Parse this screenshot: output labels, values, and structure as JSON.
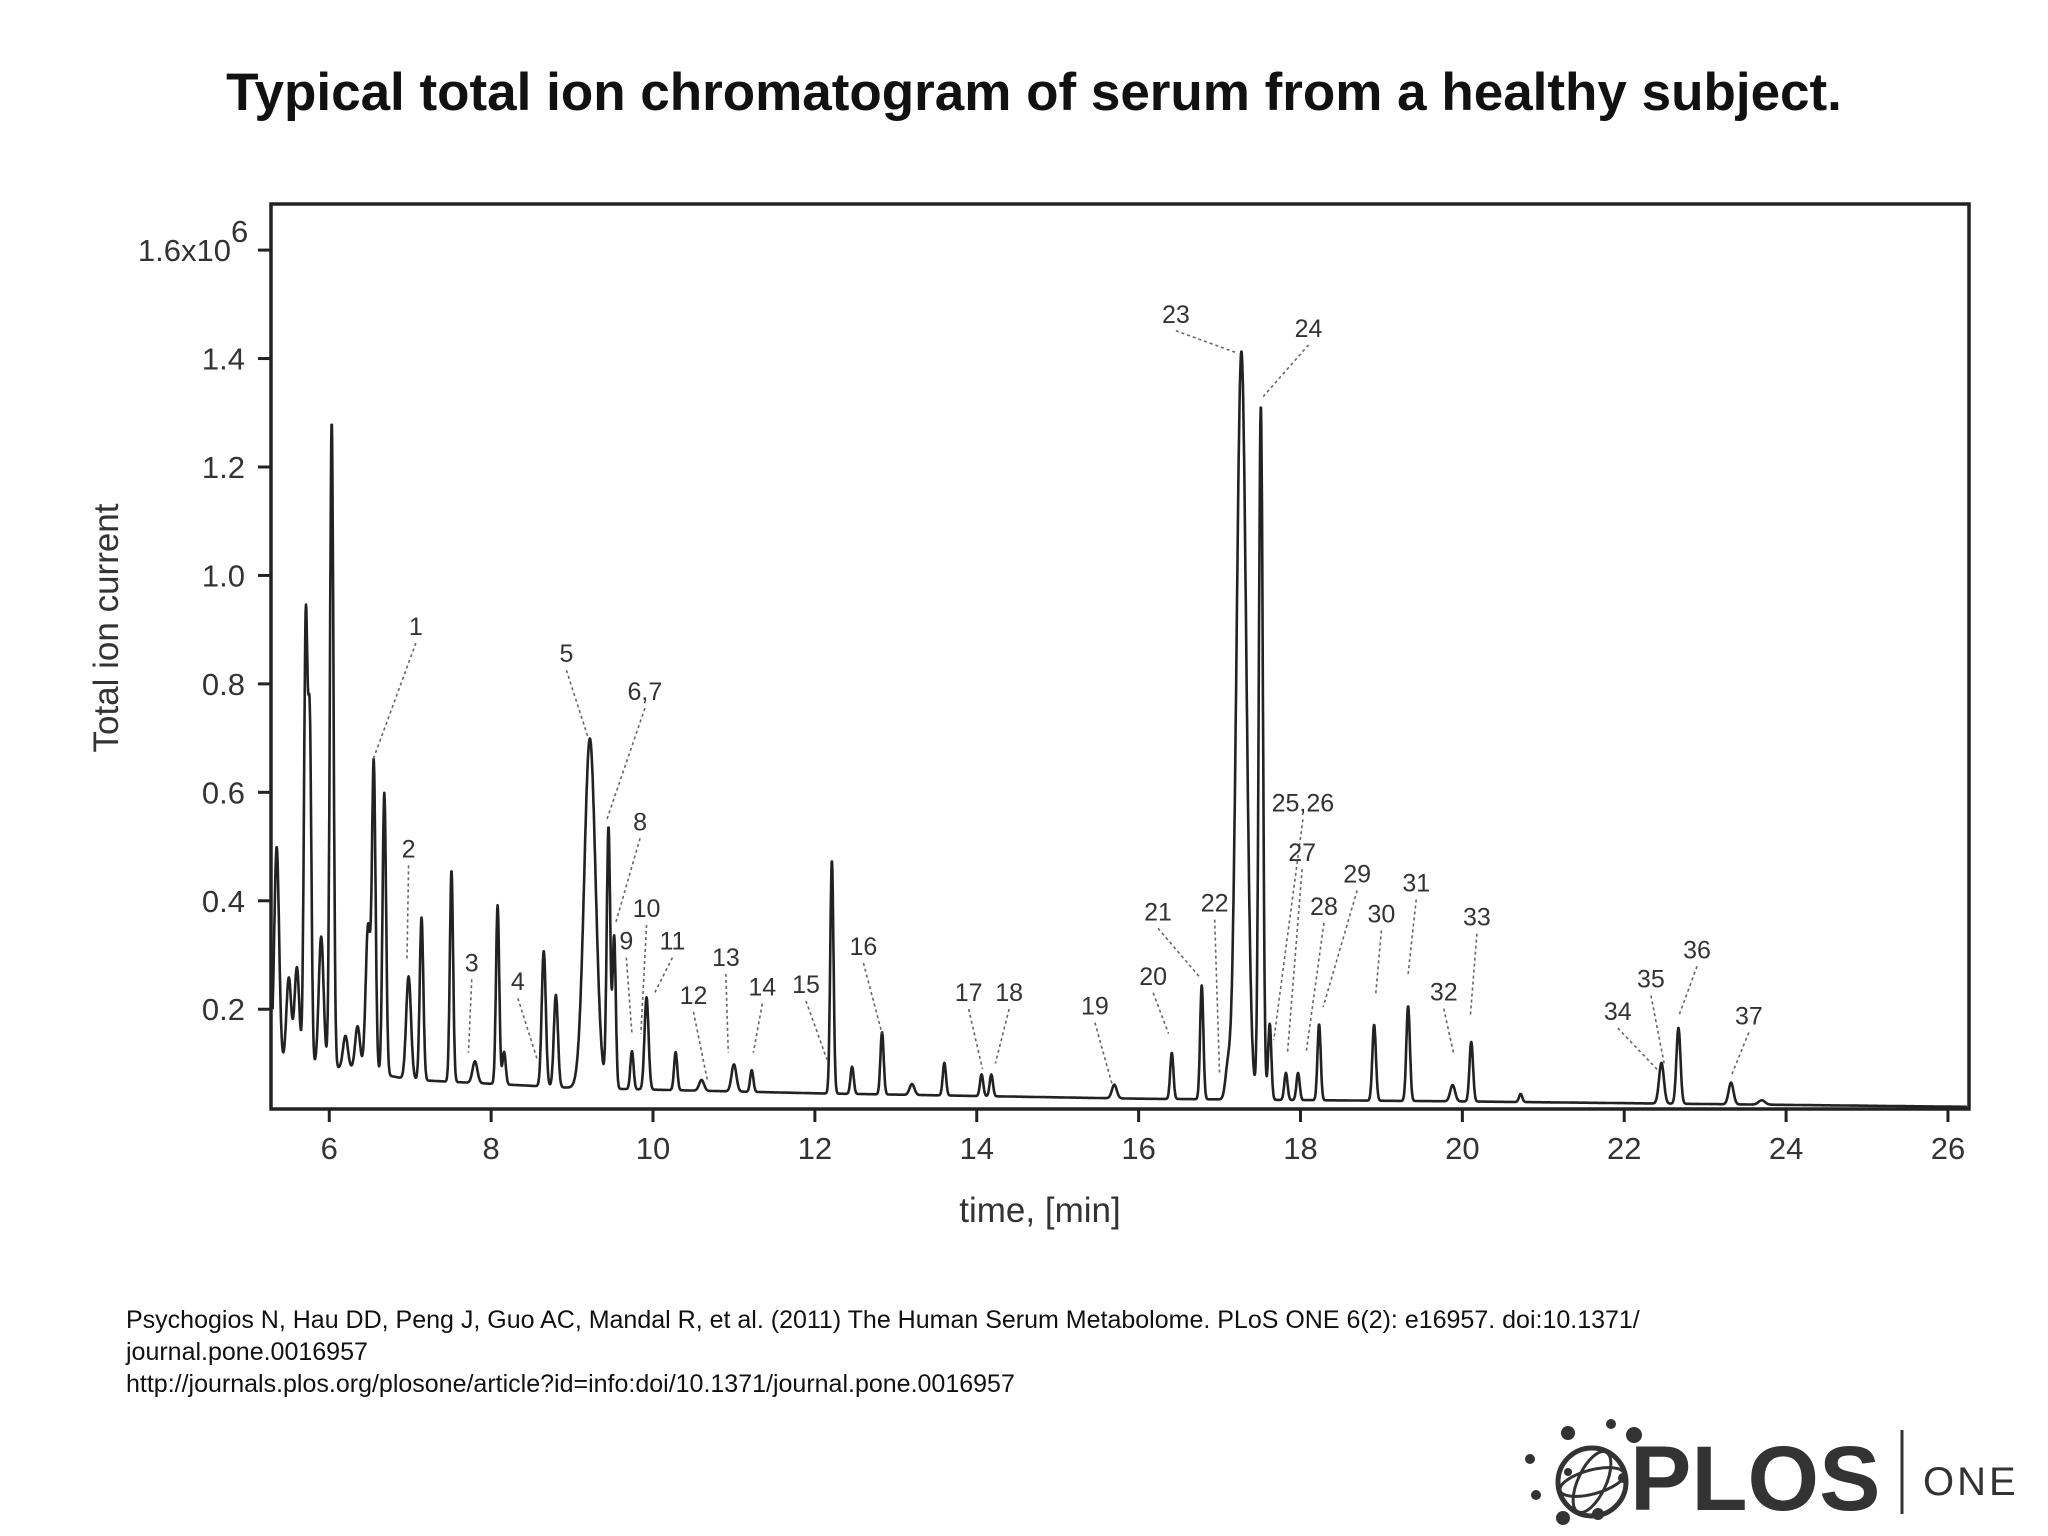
{
  "title": "Typical total ion chromatogram of serum from a healthy subject.",
  "citation": {
    "line1": "Psychogios N, Hau DD, Peng J, Guo AC, Mandal R, et al. (2011) The Human Serum Metabolome. PLoS ONE 6(2): e16957. doi:10.1371/",
    "line2": "journal.pone.0016957",
    "line3": "http://journals.plos.org/plosone/article?id=info:doi/10.1371/journal.pone.0016957"
  },
  "logo": {
    "brand": "PLOS",
    "journal": "ONE"
  },
  "chart_data": {
    "type": "line",
    "xlabel": "time, [min]",
    "ylabel": "Total ion current",
    "xlim": [
      5.28,
      26.26
    ],
    "ylim": [
      0.016,
      1.685
    ],
    "xticks": [
      6,
      8,
      10,
      12,
      14,
      16,
      18,
      20,
      22,
      24,
      26
    ],
    "yticks": [
      {
        "value": 0.2,
        "label": "0.2"
      },
      {
        "value": 0.4,
        "label": "0.4"
      },
      {
        "value": 0.6,
        "label": "0.6"
      },
      {
        "value": 0.8,
        "label": "0.8"
      },
      {
        "value": 1.0,
        "label": "1.0"
      },
      {
        "value": 1.2,
        "label": "1.2"
      },
      {
        "value": 1.4,
        "label": "1.4"
      },
      {
        "value": 1.6,
        "label": "1.6x10",
        "exponent": "6"
      }
    ],
    "grid": false,
    "line_color": "#222222",
    "baseline": [
      [
        5.3,
        0.1
      ],
      [
        6.3,
        0.09
      ],
      [
        7.0,
        0.07
      ],
      [
        9.0,
        0.055
      ],
      [
        12.0,
        0.045
      ],
      [
        16.0,
        0.035
      ],
      [
        20.0,
        0.03
      ],
      [
        26.26,
        0.02
      ]
    ],
    "peaks": [
      [
        5.35,
        0.4,
        0.03
      ],
      [
        5.5,
        0.16,
        0.03
      ],
      [
        5.6,
        0.18,
        0.03
      ],
      [
        5.71,
        0.82,
        0.022
      ],
      [
        5.76,
        0.6,
        0.02
      ],
      [
        5.9,
        0.24,
        0.03
      ],
      [
        6.03,
        1.19,
        0.022
      ],
      [
        6.2,
        0.06,
        0.03
      ],
      [
        6.35,
        0.08,
        0.03
      ],
      [
        6.48,
        0.27,
        0.03
      ],
      [
        6.55,
        0.56,
        0.022
      ],
      [
        6.68,
        0.52,
        0.022
      ],
      [
        6.98,
        0.19,
        0.03
      ],
      [
        7.14,
        0.3,
        0.022
      ],
      [
        7.51,
        0.39,
        0.02
      ],
      [
        7.8,
        0.04,
        0.03
      ],
      [
        8.08,
        0.33,
        0.02
      ],
      [
        8.16,
        0.06,
        0.02
      ],
      [
        8.65,
        0.25,
        0.025
      ],
      [
        8.8,
        0.17,
        0.025
      ],
      [
        9.22,
        0.645,
        0.07
      ],
      [
        9.45,
        0.48,
        0.022
      ],
      [
        9.52,
        0.28,
        0.02
      ],
      [
        9.74,
        0.07,
        0.02
      ],
      [
        9.92,
        0.17,
        0.025
      ],
      [
        10.28,
        0.07,
        0.02
      ],
      [
        10.6,
        0.02,
        0.03
      ],
      [
        11.0,
        0.05,
        0.03
      ],
      [
        11.22,
        0.04,
        0.02
      ],
      [
        12.21,
        0.43,
        0.02
      ],
      [
        12.46,
        0.05,
        0.02
      ],
      [
        12.83,
        0.115,
        0.02
      ],
      [
        13.2,
        0.02,
        0.03
      ],
      [
        13.6,
        0.06,
        0.02
      ],
      [
        14.06,
        0.04,
        0.02
      ],
      [
        14.18,
        0.04,
        0.02
      ],
      [
        15.7,
        0.025,
        0.03
      ],
      [
        16.41,
        0.085,
        0.02
      ],
      [
        16.78,
        0.21,
        0.02
      ],
      [
        17.1,
        0.05,
        0.03
      ],
      [
        17.27,
        1.38,
        0.06
      ],
      [
        17.51,
        1.28,
        0.025
      ],
      [
        17.62,
        0.14,
        0.02
      ],
      [
        17.82,
        0.05,
        0.02
      ],
      [
        17.97,
        0.05,
        0.02
      ],
      [
        18.23,
        0.14,
        0.02
      ],
      [
        18.91,
        0.14,
        0.022
      ],
      [
        19.33,
        0.175,
        0.022
      ],
      [
        19.88,
        0.03,
        0.03
      ],
      [
        20.11,
        0.11,
        0.022
      ],
      [
        20.72,
        0.015,
        0.02
      ],
      [
        22.46,
        0.075,
        0.03
      ],
      [
        22.67,
        0.14,
        0.025
      ],
      [
        23.32,
        0.04,
        0.03
      ],
      [
        23.7,
        0.008,
        0.04
      ]
    ],
    "annotations": [
      {
        "text": "1",
        "x": 7.07,
        "y": 0.89,
        "tx": 6.54,
        "ty": 0.66
      },
      {
        "text": "2",
        "x": 6.98,
        "y": 0.48,
        "tx": 6.96,
        "ty": 0.29
      },
      {
        "text": "3",
        "x": 7.76,
        "y": 0.27,
        "tx": 7.72,
        "ty": 0.12
      },
      {
        "text": "4",
        "x": 8.33,
        "y": 0.235,
        "tx": 8.57,
        "ty": 0.107
      },
      {
        "text": "5",
        "x": 8.93,
        "y": 0.84,
        "tx": 9.2,
        "ty": 0.7
      },
      {
        "text": "6,7",
        "x": 9.9,
        "y": 0.77,
        "tx": 9.43,
        "ty": 0.55
      },
      {
        "text": "8",
        "x": 9.84,
        "y": 0.53,
        "tx": 9.54,
        "ty": 0.36
      },
      {
        "text": "9",
        "x": 9.67,
        "y": 0.31,
        "tx": 9.74,
        "ty": 0.155
      },
      {
        "text": "10",
        "x": 9.92,
        "y": 0.37,
        "tx": 9.85,
        "ty": 0.155
      },
      {
        "text": "11",
        "x": 10.24,
        "y": 0.31,
        "tx": 10.02,
        "ty": 0.23
      },
      {
        "text": "12",
        "x": 10.5,
        "y": 0.21,
        "tx": 10.67,
        "ty": 0.07
      },
      {
        "text": "13",
        "x": 10.9,
        "y": 0.28,
        "tx": 10.93,
        "ty": 0.12
      },
      {
        "text": "14",
        "x": 11.35,
        "y": 0.225,
        "tx": 11.24,
        "ty": 0.12
      },
      {
        "text": "15",
        "x": 11.89,
        "y": 0.23,
        "tx": 12.15,
        "ty": 0.107
      },
      {
        "text": "16",
        "x": 12.6,
        "y": 0.3,
        "tx": 12.83,
        "ty": 0.155
      },
      {
        "text": "17",
        "x": 13.9,
        "y": 0.215,
        "tx": 14.07,
        "ty": 0.09
      },
      {
        "text": "18",
        "x": 14.4,
        "y": 0.215,
        "tx": 14.23,
        "ty": 0.1
      },
      {
        "text": "19",
        "x": 15.46,
        "y": 0.19,
        "tx": 15.67,
        "ty": 0.063
      },
      {
        "text": "20",
        "x": 16.18,
        "y": 0.245,
        "tx": 16.37,
        "ty": 0.155
      },
      {
        "text": "21",
        "x": 16.24,
        "y": 0.364,
        "tx": 16.75,
        "ty": 0.26
      },
      {
        "text": "22",
        "x": 16.94,
        "y": 0.38,
        "tx": 17.0,
        "ty": 0.08
      },
      {
        "text": "23",
        "x": 16.46,
        "y": 1.466,
        "tx": 17.22,
        "ty": 1.41
      },
      {
        "text": "24",
        "x": 18.1,
        "y": 1.44,
        "tx": 17.54,
        "ty": 1.33
      },
      {
        "text": "25,26",
        "x": 18.03,
        "y": 0.565,
        "tx": 17.67,
        "ty": 0.143
      },
      {
        "text": "27",
        "x": 18.02,
        "y": 0.473,
        "tx": 17.84,
        "ty": 0.12
      },
      {
        "text": "28",
        "x": 18.29,
        "y": 0.374,
        "tx": 18.07,
        "ty": 0.12
      },
      {
        "text": "29",
        "x": 18.7,
        "y": 0.434,
        "tx": 18.28,
        "ty": 0.204
      },
      {
        "text": "30",
        "x": 19.0,
        "y": 0.36,
        "tx": 18.93,
        "ty": 0.228
      },
      {
        "text": "31",
        "x": 19.43,
        "y": 0.417,
        "tx": 19.33,
        "ty": 0.265
      },
      {
        "text": "32",
        "x": 19.77,
        "y": 0.216,
        "tx": 19.89,
        "ty": 0.12
      },
      {
        "text": "33",
        "x": 20.18,
        "y": 0.354,
        "tx": 20.1,
        "ty": 0.19
      },
      {
        "text": "34",
        "x": 21.92,
        "y": 0.18,
        "tx": 22.42,
        "ty": 0.087
      },
      {
        "text": "35",
        "x": 22.33,
        "y": 0.24,
        "tx": 22.5,
        "ty": 0.095
      },
      {
        "text": "36",
        "x": 22.9,
        "y": 0.294,
        "tx": 22.68,
        "ty": 0.19
      },
      {
        "text": "37",
        "x": 23.54,
        "y": 0.172,
        "tx": 23.33,
        "ty": 0.08
      }
    ]
  }
}
